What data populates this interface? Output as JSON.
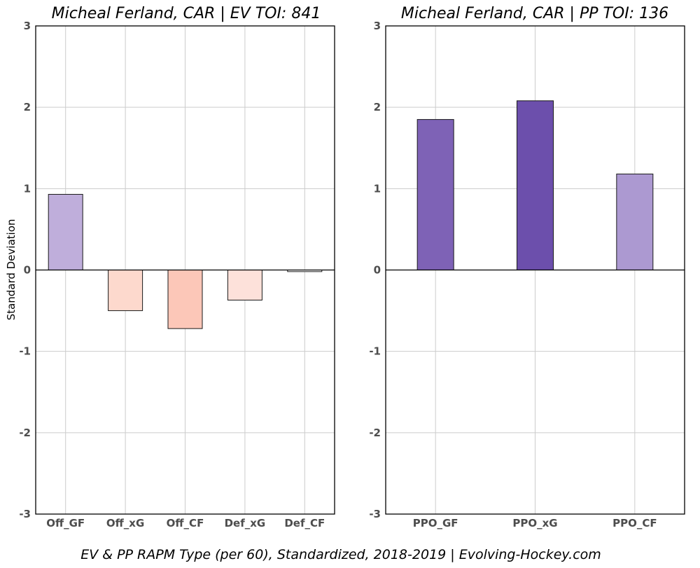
{
  "chart_data": [
    {
      "type": "bar",
      "title": "Micheal Ferland, CAR  |  EV TOI: 841",
      "ylabel": "Standard Deviation",
      "xlabel": "",
      "ylim": [
        -3,
        3
      ],
      "yticks": [
        -3,
        -2,
        -1,
        0,
        1,
        2,
        3
      ],
      "grid": true,
      "categories": [
        "Off_GF",
        "Off_xG",
        "Off_CF",
        "Def_xG",
        "Def_CF"
      ],
      "values": [
        0.93,
        -0.5,
        -0.72,
        -0.37,
        -0.02
      ],
      "colors": [
        "#bfaedb",
        "#fdd9cd",
        "#fcc7b8",
        "#fde1da",
        "#ffffff"
      ]
    },
    {
      "type": "bar",
      "title": "Micheal Ferland, CAR  |  PP TOI: 136",
      "ylabel": "",
      "xlabel": "",
      "ylim": [
        -3,
        3
      ],
      "yticks": [
        -3,
        -2,
        -1,
        0,
        1,
        2,
        3
      ],
      "grid": true,
      "categories": [
        "PPO_GF",
        "PPO_xG",
        "PPO_CF"
      ],
      "values": [
        1.85,
        2.08,
        1.18
      ],
      "colors": [
        "#7e62b6",
        "#6c4fac",
        "#ac99d1"
      ]
    }
  ],
  "caption": "EV & PP RAPM Type (per 60), Standardized, 2018-2019    |    Evolving-Hockey.com"
}
